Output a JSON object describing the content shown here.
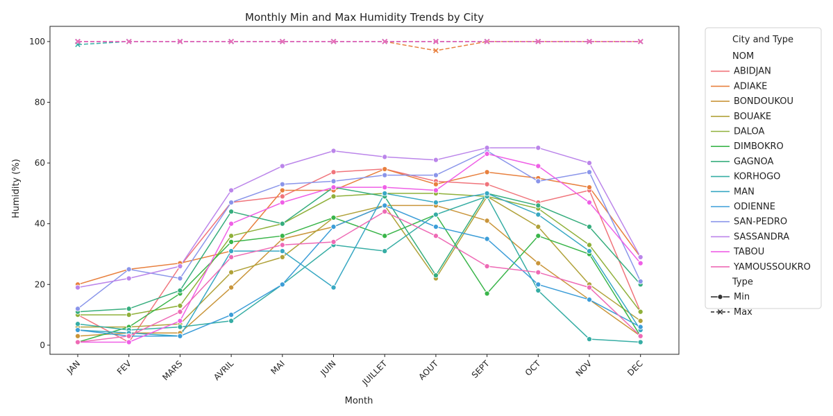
{
  "chart_data": {
    "type": "line",
    "title": "Monthly Min and Max Humidity Trends by City",
    "xlabel": "Month",
    "ylabel": "Humidity (%)",
    "ylim": [
      -3,
      105
    ],
    "yticks": [
      0,
      20,
      40,
      60,
      80,
      100
    ],
    "grid": false,
    "legend_placement": "outside-right",
    "legend_title": "City and Type",
    "legend_hue_title": "NOM",
    "legend_style_title": "Type",
    "categories": [
      "JAN",
      "FEV",
      "MARS",
      "AVRIL",
      "MAI",
      "JUIN",
      "JUILLET",
      "AOUT",
      "SEPT",
      "OCT",
      "NOV",
      "DEC"
    ],
    "style_entries": [
      {
        "label": "Min",
        "marker": "circle",
        "dash": "solid"
      },
      {
        "label": "Max",
        "marker": "x",
        "dash": "dashed"
      }
    ],
    "series": [
      {
        "name": "ABIDJAN",
        "color": "#f0747b",
        "min": [
          10,
          1,
          26,
          47,
          49,
          57,
          58,
          54,
          53,
          47,
          51,
          11
        ],
        "max": [
          100,
          100,
          100,
          100,
          100,
          100,
          100,
          100,
          100,
          100,
          100,
          100
        ]
      },
      {
        "name": "ADIAKE",
        "color": "#e8803e",
        "min": [
          20,
          25,
          27,
          31,
          51,
          51,
          58,
          53,
          57,
          55,
          52,
          29
        ],
        "max": [
          100,
          100,
          100,
          100,
          100,
          100,
          100,
          97,
          100,
          100,
          100,
          100
        ]
      },
      {
        "name": "BONDOUKOU",
        "color": "#c9953a",
        "min": [
          3,
          4,
          4,
          19,
          35,
          39,
          46,
          46,
          41,
          27,
          15,
          3
        ],
        "max": [
          100,
          100,
          100,
          100,
          100,
          100,
          100,
          100,
          100,
          100,
          100,
          100
        ]
      },
      {
        "name": "BOUAKE",
        "color": "#b0a23a",
        "min": [
          6,
          6,
          7,
          24,
          29,
          42,
          46,
          22,
          49,
          39,
          20,
          8
        ],
        "max": [
          100,
          100,
          100,
          100,
          100,
          100,
          100,
          100,
          100,
          100,
          100,
          100
        ]
      },
      {
        "name": "DALOA",
        "color": "#8fb03a",
        "min": [
          10,
          10,
          13,
          36,
          40,
          49,
          50,
          50,
          49,
          45,
          33,
          11
        ],
        "max": [
          100,
          100,
          100,
          100,
          100,
          100,
          100,
          100,
          100,
          100,
          100,
          100
        ]
      },
      {
        "name": "DIMBOKRO",
        "color": "#3ab54a",
        "min": [
          1,
          6,
          17,
          34,
          36,
          42,
          36,
          43,
          17,
          36,
          30,
          3
        ],
        "max": [
          100,
          100,
          100,
          100,
          100,
          100,
          100,
          100,
          100,
          100,
          100,
          100
        ]
      },
      {
        "name": "GAGNOA",
        "color": "#36ad7d",
        "min": [
          11,
          12,
          18,
          44,
          40,
          52,
          49,
          23,
          50,
          46,
          39,
          20
        ],
        "max": [
          100,
          100,
          100,
          100,
          100,
          100,
          100,
          100,
          100,
          100,
          100,
          100
        ]
      },
      {
        "name": "KORHOGO",
        "color": "#36ada4",
        "min": [
          7,
          5,
          6,
          8,
          20,
          33,
          31,
          43,
          49,
          18,
          2,
          1
        ],
        "max": [
          99,
          100,
          100,
          100,
          100,
          100,
          100,
          100,
          100,
          100,
          100,
          100
        ]
      },
      {
        "name": "MAN",
        "color": "#38a8c3",
        "min": [
          5,
          4,
          3,
          31,
          31,
          19,
          50,
          47,
          50,
          43,
          31,
          5
        ],
        "max": [
          100,
          100,
          100,
          100,
          100,
          100,
          100,
          100,
          100,
          100,
          100,
          100
        ]
      },
      {
        "name": "ODIENNE",
        "color": "#3c9dd8",
        "min": [
          5,
          3,
          3,
          10,
          20,
          39,
          46,
          39,
          35,
          20,
          15,
          6
        ],
        "max": [
          100,
          100,
          100,
          100,
          100,
          100,
          100,
          100,
          100,
          100,
          100,
          100
        ]
      },
      {
        "name": "SAN-PEDRO",
        "color": "#8a95ea",
        "min": [
          12,
          25,
          22,
          47,
          53,
          54,
          56,
          56,
          64,
          54,
          57,
          21
        ],
        "max": [
          100,
          100,
          100,
          100,
          100,
          100,
          100,
          100,
          100,
          100,
          100,
          100
        ]
      },
      {
        "name": "SASSANDRA",
        "color": "#bb85ea",
        "min": [
          19,
          22,
          26,
          51,
          59,
          64,
          62,
          61,
          65,
          65,
          60,
          29
        ],
        "max": [
          100,
          100,
          100,
          100,
          100,
          100,
          100,
          100,
          100,
          100,
          100,
          100
        ]
      },
      {
        "name": "TABOU",
        "color": "#ef5fe6",
        "min": [
          1,
          1,
          8,
          40,
          47,
          52,
          52,
          51,
          63,
          59,
          47,
          27
        ],
        "max": [
          100,
          100,
          100,
          100,
          100,
          100,
          100,
          100,
          100,
          100,
          100,
          100
        ]
      },
      {
        "name": "YAMOUSSOUKRO",
        "color": "#ee6ab5",
        "min": [
          1,
          3,
          11,
          29,
          33,
          34,
          44,
          36,
          26,
          24,
          19,
          3
        ],
        "max": [
          100,
          100,
          100,
          100,
          100,
          100,
          100,
          100,
          100,
          100,
          100,
          100
        ]
      }
    ]
  }
}
